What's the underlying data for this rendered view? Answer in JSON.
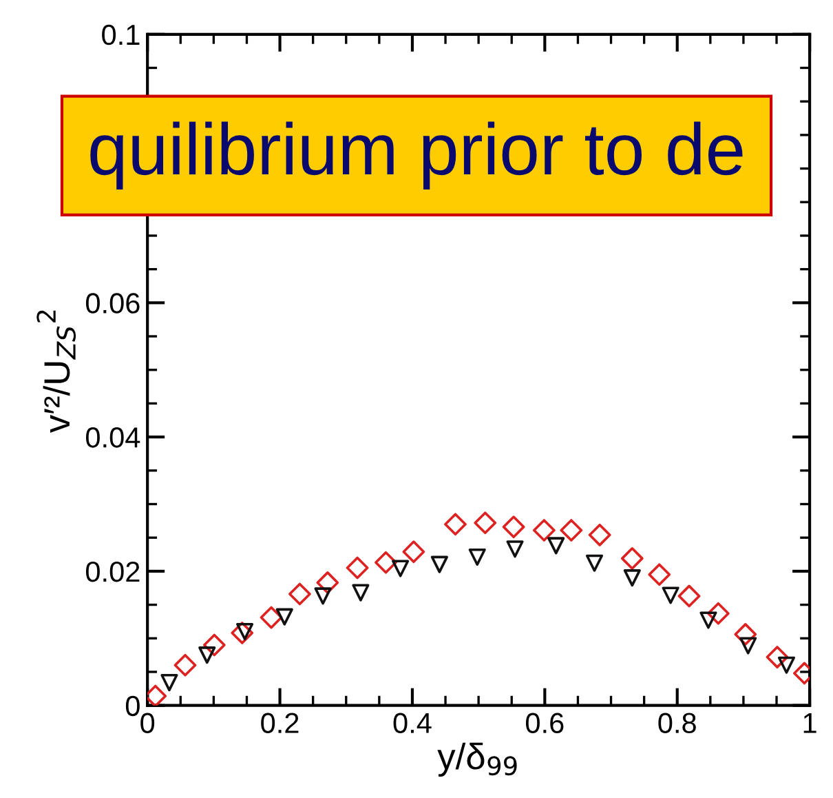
{
  "chart_data": {
    "type": "scatter",
    "xlabel": "y/δ$_{99}$",
    "ylabel": "v′²/U$_{ZS}$$^{2}$",
    "annotations": [
      "quilibrium prior to de"
    ],
    "xlim": [
      0,
      1
    ],
    "xticks": [
      0,
      0.2,
      0.4,
      0.6,
      0.8,
      1
    ],
    "ylim": [
      0,
      0.1
    ],
    "yticks": [
      0,
      0.02,
      0.04,
      0.06,
      0.1
    ],
    "grid": false,
    "legend": false,
    "series": [
      {
        "color": "#dd2222",
        "marker": "diamond",
        "x": [
          0.012,
          0.057,
          0.101,
          0.143,
          0.187,
          0.23,
          0.272,
          0.317,
          0.36,
          0.402,
          0.465,
          0.51,
          0.553,
          0.599,
          0.64,
          0.683,
          0.732,
          0.773,
          0.818,
          0.862,
          0.903,
          0.951,
          0.992
        ],
        "values": [
          0.0014,
          0.006,
          0.009,
          0.0108,
          0.0131,
          0.0166,
          0.0183,
          0.0205,
          0.0213,
          0.0229,
          0.027,
          0.0272,
          0.0266,
          0.0261,
          0.0261,
          0.0254,
          0.0219,
          0.0195,
          0.0163,
          0.0137,
          0.0106,
          0.0072,
          0.0048
        ]
      },
      {
        "color": "#111111",
        "marker": "triangle",
        "x": [
          0.033,
          0.09,
          0.147,
          0.207,
          0.265,
          0.322,
          0.382,
          0.441,
          0.498,
          0.555,
          0.617,
          0.675,
          0.732,
          0.79,
          0.847,
          0.907,
          0.965
        ],
        "values": [
          0.0034,
          0.0075,
          0.011,
          0.0132,
          0.0163,
          0.0168,
          0.0204,
          0.021,
          0.0221,
          0.0233,
          0.0238,
          0.0212,
          0.019,
          0.0164,
          0.0127,
          0.0089,
          0.006
        ]
      }
    ]
  }
}
